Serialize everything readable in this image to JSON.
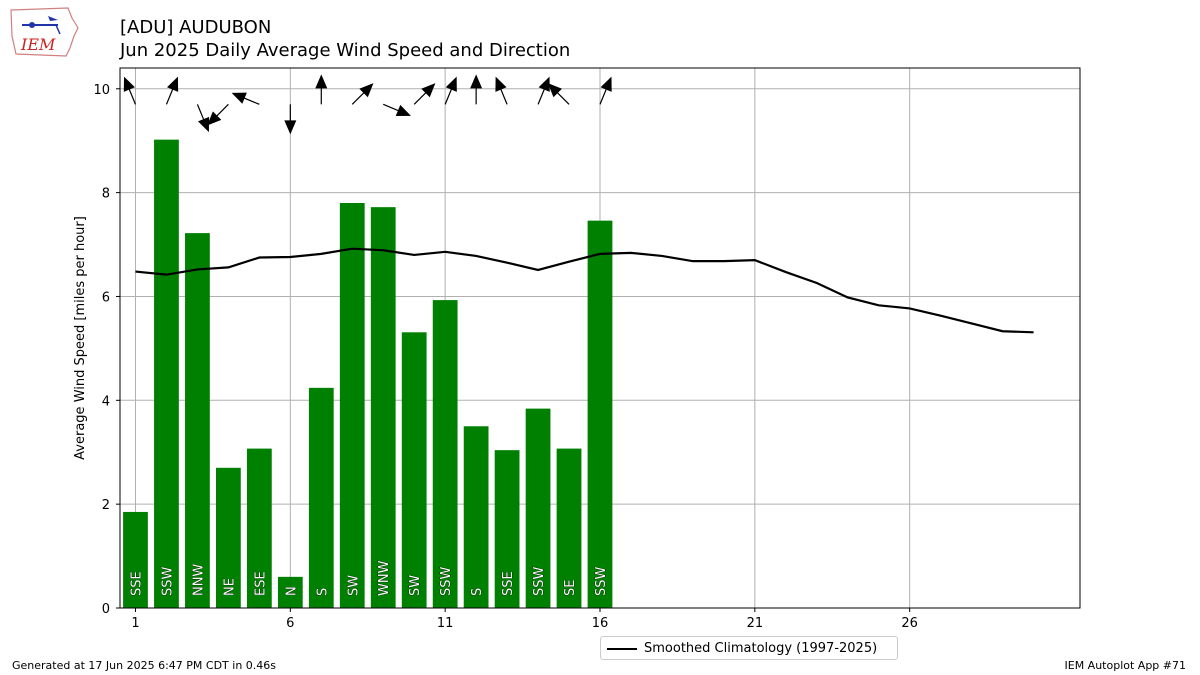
{
  "header": {
    "title_line1": "[ADU] AUDUBON",
    "title_line2": "Jun 2025 Daily Average Wind Speed and Direction",
    "logo_text": "IEM"
  },
  "footer": {
    "generated": "Generated at 17 Jun 2025 6:47 PM CDT in 0.46s",
    "app": "IEM Autoplot App #71"
  },
  "legend": {
    "climatology_label": "Smoothed Climatology (1997-2025)"
  },
  "colors": {
    "bar": "#008000",
    "climatology_line": "#000000",
    "grid": "#b0b0b0"
  },
  "chart_data": {
    "type": "bar",
    "ylabel": "Average Wind Speed [miles per hour]",
    "xlabel": "",
    "xlim": [
      0.5,
      31.5
    ],
    "ylim": [
      0,
      10.4
    ],
    "xticks": [
      1,
      6,
      11,
      16,
      21,
      26
    ],
    "yticks": [
      0,
      2,
      4,
      6,
      8,
      10
    ],
    "grid": true,
    "legend_position": "below-center",
    "days": [
      1,
      2,
      3,
      4,
      5,
      6,
      7,
      8,
      9,
      10,
      11,
      12,
      13,
      14,
      15,
      16
    ],
    "speeds": [
      1.85,
      9.02,
      7.22,
      2.7,
      3.07,
      0.6,
      4.24,
      7.8,
      7.72,
      5.31,
      5.93,
      3.5,
      3.04,
      3.84,
      3.07,
      7.46
    ],
    "directions": [
      "SSE",
      "SSW",
      "NNW",
      "NE",
      "ESE",
      "N",
      "S",
      "SW",
      "WNW",
      "SW",
      "SSW",
      "S",
      "SSE",
      "SSW",
      "SE",
      "SSW"
    ],
    "climatology": {
      "name": "Smoothed Climatology (1997-2025)",
      "days": [
        1,
        2,
        3,
        4,
        5,
        6,
        7,
        8,
        9,
        10,
        11,
        12,
        13,
        14,
        15,
        16,
        17,
        18,
        19,
        20,
        21,
        22,
        23,
        24,
        25,
        26,
        27,
        28,
        29,
        30
      ],
      "values": [
        6.48,
        6.42,
        6.52,
        6.56,
        6.75,
        6.76,
        6.82,
        6.92,
        6.89,
        6.8,
        6.86,
        6.78,
        6.65,
        6.51,
        6.67,
        6.82,
        6.84,
        6.78,
        6.68,
        6.68,
        6.7,
        6.47,
        6.26,
        5.98,
        5.83,
        5.77,
        5.63,
        5.48,
        5.33,
        5.31
      ]
    }
  }
}
